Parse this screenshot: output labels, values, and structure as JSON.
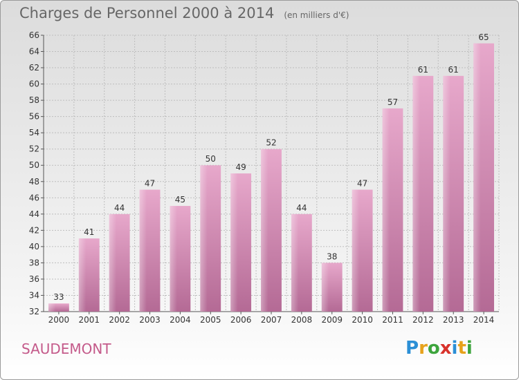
{
  "chart_data": {
    "type": "bar",
    "title": "Charges de Personnel 2000 à 2014",
    "subtitle": "(en milliers d'€)",
    "categories": [
      "2000",
      "2001",
      "2002",
      "2003",
      "2004",
      "2005",
      "2006",
      "2007",
      "2008",
      "2009",
      "2010",
      "2011",
      "2012",
      "2013",
      "2014"
    ],
    "values": [
      33,
      41,
      44,
      47,
      45,
      50,
      49,
      52,
      44,
      38,
      47,
      57,
      61,
      61,
      65
    ],
    "ylim": [
      32,
      66
    ],
    "yticks": [
      32,
      34,
      36,
      38,
      40,
      42,
      44,
      46,
      48,
      50,
      52,
      54,
      56,
      58,
      60,
      62,
      64,
      66
    ],
    "grid": true,
    "bar_color": "#d98bb6"
  },
  "footer": {
    "place": "SAUDEMONT",
    "logo": [
      {
        "char": "P",
        "color": "#2b8fd6"
      },
      {
        "char": "r",
        "color": "#e7a21b"
      },
      {
        "char": "o",
        "color": "#3da53d"
      },
      {
        "char": "x",
        "color": "#d8322c"
      },
      {
        "char": "i",
        "color": "#2b8fd6"
      },
      {
        "char": "t",
        "color": "#e7a21b"
      },
      {
        "char": "i",
        "color": "#3da53d"
      }
    ]
  }
}
